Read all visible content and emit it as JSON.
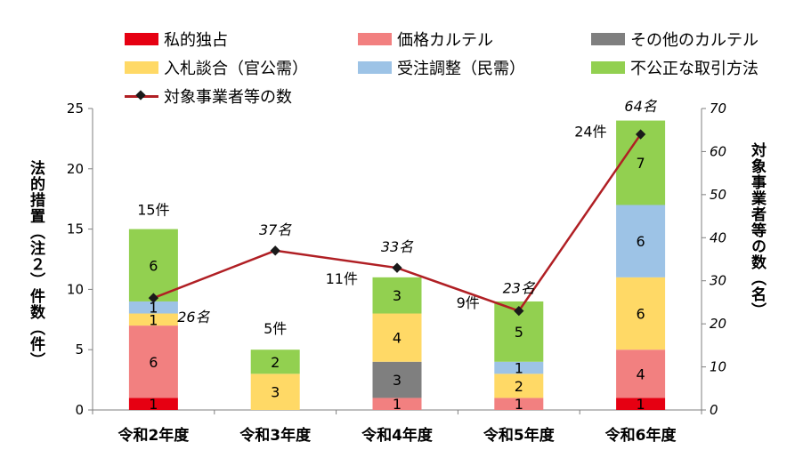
{
  "chart_data": {
    "type": "bar",
    "categories": [
      "令和2年度",
      "令和3年度",
      "令和4年度",
      "令和5年度",
      "令和6年度"
    ],
    "series": [
      {
        "name": "私的独占",
        "color": "#e60012",
        "values": [
          1,
          0,
          0,
          0,
          1
        ]
      },
      {
        "name": "価格カルテル",
        "color": "#f28080",
        "values": [
          6,
          0,
          1,
          1,
          4
        ]
      },
      {
        "name": "その他のカルテル",
        "color": "#7f7f7f",
        "values": [
          0,
          0,
          3,
          0,
          0
        ]
      },
      {
        "name": "入札談合（官公需）",
        "color": "#ffd966",
        "values": [
          1,
          3,
          4,
          2,
          6
        ]
      },
      {
        "name": "受注調整（民需）",
        "color": "#9dc3e6",
        "values": [
          1,
          0,
          0,
          1,
          6
        ]
      },
      {
        "name": "不公正な取引方法",
        "color": "#92d050",
        "values": [
          6,
          2,
          3,
          5,
          7
        ]
      }
    ],
    "line_series": {
      "name": "対象事業者等の数",
      "color": "#b01f24",
      "values": [
        26,
        37,
        33,
        23,
        64
      ],
      "labels": [
        "26名",
        "37名",
        "33名",
        "23名",
        "64名"
      ]
    },
    "totals": [
      "15件",
      "5件",
      "11件",
      "9件",
      "24件"
    ],
    "ylabel": "法的措置（注２）件数（件）",
    "y2label": "対象事業者等の数（名）",
    "ylim": [
      0,
      25
    ],
    "yticks": [
      0,
      5,
      10,
      15,
      20,
      25
    ],
    "y2lim": [
      0,
      70
    ],
    "y2ticks": [
      0,
      10,
      20,
      30,
      40,
      50,
      60,
      70
    ],
    "grid": false,
    "legend_position": "top"
  }
}
